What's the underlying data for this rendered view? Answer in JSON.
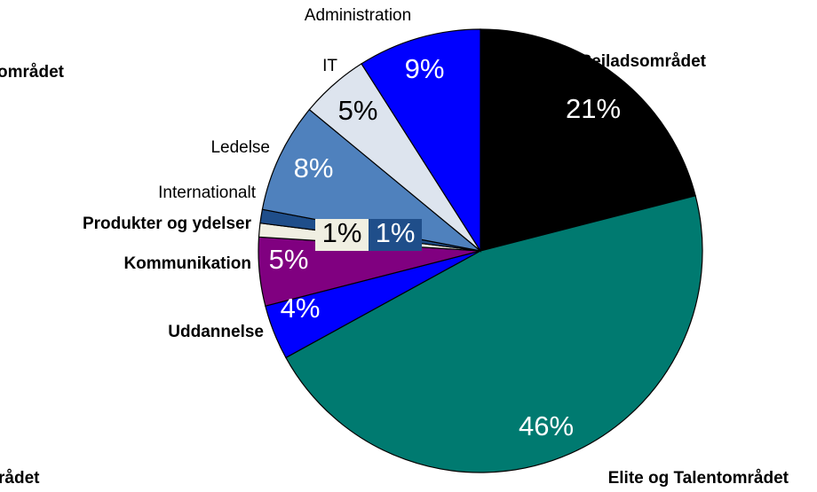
{
  "chart_data": {
    "type": "pie",
    "categories": [
      "Sejladsområdet",
      "Elite og Talentområdet",
      "Uddannelse",
      "Kommunikation",
      "Produkter og ydelser",
      "Internationalt",
      "Ledelse",
      "IT",
      "Administration"
    ],
    "values": [
      21,
      46,
      4,
      5,
      1,
      1,
      8,
      5,
      9
    ],
    "value_labels": [
      "21%",
      "46%",
      "4%",
      "5%",
      "1%",
      "1%",
      "8%",
      "5%",
      "9%"
    ],
    "colors": [
      "#000000",
      "#007a70",
      "#0000ff",
      "#800080",
      "#f0efe2",
      "#1f4e8a",
      "#4f81bd",
      "#dde4ee",
      "#0000ff"
    ],
    "annotations": [
      "området",
      "rådet"
    ]
  }
}
